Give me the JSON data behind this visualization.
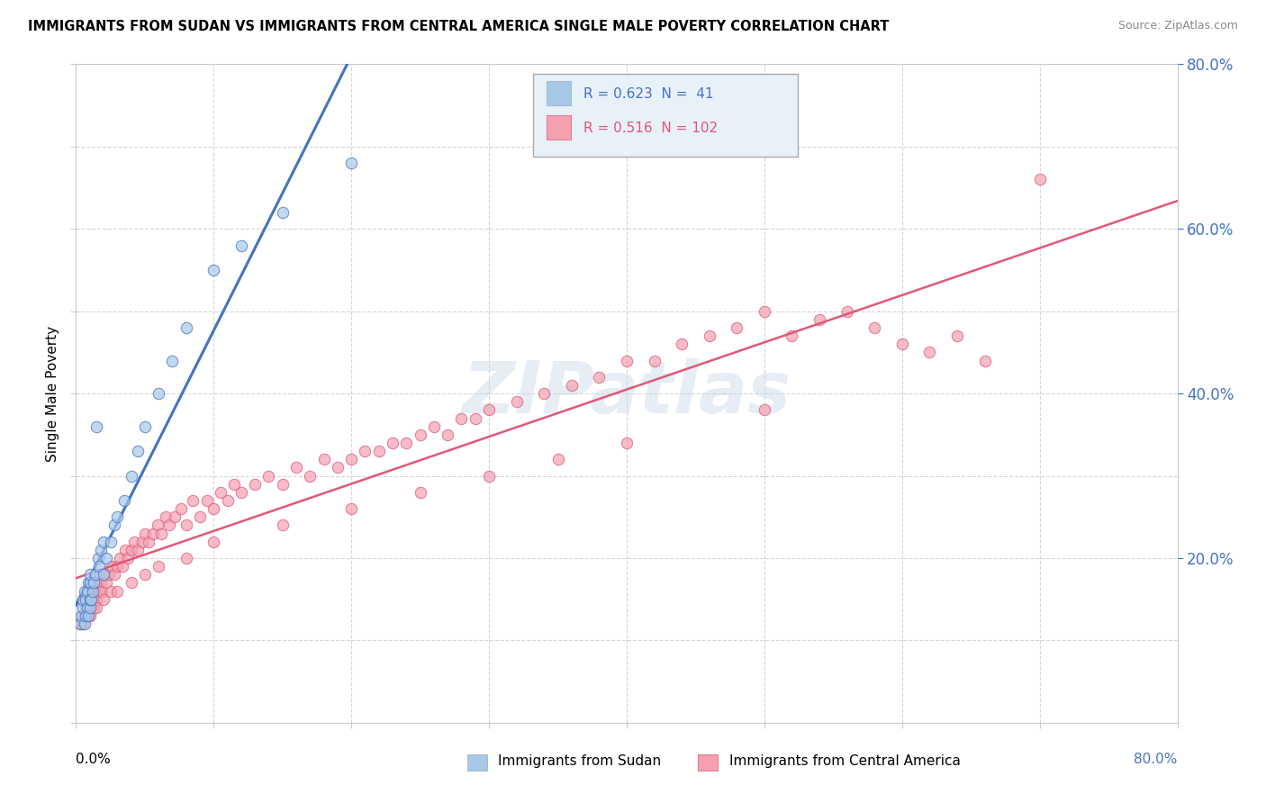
{
  "title": "IMMIGRANTS FROM SUDAN VS IMMIGRANTS FROM CENTRAL AMERICA SINGLE MALE POVERTY CORRELATION CHART",
  "source": "Source: ZipAtlas.com",
  "ylabel": "Single Male Poverty",
  "legend_label1": "Immigrants from Sudan",
  "legend_label2": "Immigrants from Central America",
  "r1": "0.623",
  "n1": "41",
  "r2": "0.516",
  "n2": "102",
  "color_sudan": "#a8c8e8",
  "color_central": "#f4a0b0",
  "color_sudan_line": "#4472c4",
  "color_central_line": "#e05878",
  "xlim": [
    0.0,
    0.8
  ],
  "ylim": [
    0.0,
    0.8
  ],
  "yticks_right": [
    0.2,
    0.4,
    0.6,
    0.8
  ],
  "ytick_labels_right": [
    "20.0%",
    "40.0%",
    "60.0%",
    "80.0%"
  ],
  "sudan_x": [
    0.003,
    0.004,
    0.005,
    0.005,
    0.006,
    0.006,
    0.007,
    0.007,
    0.008,
    0.008,
    0.009,
    0.009,
    0.01,
    0.01,
    0.01,
    0.01,
    0.011,
    0.012,
    0.013,
    0.014,
    0.015,
    0.016,
    0.017,
    0.018,
    0.02,
    0.02,
    0.022,
    0.025,
    0.028,
    0.03,
    0.035,
    0.04,
    0.045,
    0.05,
    0.06,
    0.07,
    0.08,
    0.1,
    0.12,
    0.15,
    0.2
  ],
  "sudan_y": [
    0.12,
    0.13,
    0.14,
    0.15,
    0.12,
    0.16,
    0.13,
    0.15,
    0.14,
    0.16,
    0.13,
    0.17,
    0.14,
    0.15,
    0.17,
    0.18,
    0.15,
    0.16,
    0.17,
    0.18,
    0.36,
    0.2,
    0.19,
    0.21,
    0.18,
    0.22,
    0.2,
    0.22,
    0.24,
    0.25,
    0.27,
    0.3,
    0.33,
    0.36,
    0.4,
    0.44,
    0.48,
    0.55,
    0.58,
    0.62,
    0.68
  ],
  "central_x": [
    0.003,
    0.005,
    0.007,
    0.008,
    0.009,
    0.01,
    0.011,
    0.012,
    0.013,
    0.014,
    0.015,
    0.016,
    0.017,
    0.018,
    0.019,
    0.02,
    0.022,
    0.024,
    0.026,
    0.028,
    0.03,
    0.032,
    0.034,
    0.036,
    0.038,
    0.04,
    0.042,
    0.045,
    0.048,
    0.05,
    0.053,
    0.056,
    0.059,
    0.062,
    0.065,
    0.068,
    0.072,
    0.076,
    0.08,
    0.085,
    0.09,
    0.095,
    0.1,
    0.105,
    0.11,
    0.115,
    0.12,
    0.13,
    0.14,
    0.15,
    0.16,
    0.17,
    0.18,
    0.19,
    0.2,
    0.21,
    0.22,
    0.23,
    0.24,
    0.25,
    0.26,
    0.27,
    0.28,
    0.29,
    0.3,
    0.32,
    0.34,
    0.36,
    0.38,
    0.4,
    0.42,
    0.44,
    0.46,
    0.48,
    0.5,
    0.52,
    0.54,
    0.56,
    0.58,
    0.6,
    0.62,
    0.64,
    0.66,
    0.005,
    0.01,
    0.015,
    0.02,
    0.025,
    0.03,
    0.04,
    0.05,
    0.06,
    0.08,
    0.1,
    0.15,
    0.2,
    0.25,
    0.3,
    0.35,
    0.4,
    0.5,
    0.7
  ],
  "central_y": [
    0.12,
    0.13,
    0.14,
    0.13,
    0.15,
    0.14,
    0.15,
    0.16,
    0.14,
    0.16,
    0.15,
    0.17,
    0.16,
    0.17,
    0.16,
    0.18,
    0.17,
    0.18,
    0.19,
    0.18,
    0.19,
    0.2,
    0.19,
    0.21,
    0.2,
    0.21,
    0.22,
    0.21,
    0.22,
    0.23,
    0.22,
    0.23,
    0.24,
    0.23,
    0.25,
    0.24,
    0.25,
    0.26,
    0.24,
    0.27,
    0.25,
    0.27,
    0.26,
    0.28,
    0.27,
    0.29,
    0.28,
    0.29,
    0.3,
    0.29,
    0.31,
    0.3,
    0.32,
    0.31,
    0.32,
    0.33,
    0.33,
    0.34,
    0.34,
    0.35,
    0.36,
    0.35,
    0.37,
    0.37,
    0.38,
    0.39,
    0.4,
    0.41,
    0.42,
    0.44,
    0.44,
    0.46,
    0.47,
    0.48,
    0.5,
    0.47,
    0.49,
    0.5,
    0.48,
    0.46,
    0.45,
    0.47,
    0.44,
    0.12,
    0.13,
    0.14,
    0.15,
    0.16,
    0.16,
    0.17,
    0.18,
    0.19,
    0.2,
    0.22,
    0.24,
    0.26,
    0.28,
    0.3,
    0.32,
    0.34,
    0.38,
    0.66
  ]
}
